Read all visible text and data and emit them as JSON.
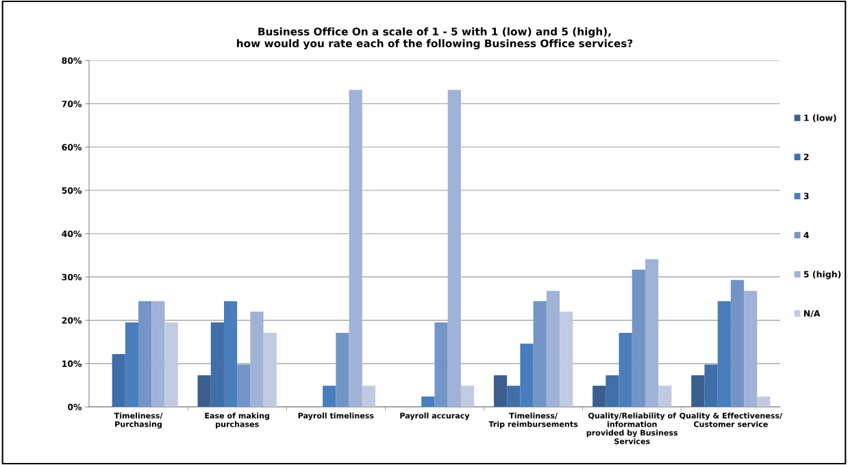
{
  "chart_data": {
    "type": "bar",
    "title": "Business Office On a scale of 1 - 5 with 1 (low) and 5 (high),\nhow would you rate each of the following Business Office services?",
    "categories": [
      "Timeliness/\nPurchasing",
      "Ease of making\npurchases",
      "Payroll timeliness",
      "Payroll accuracy",
      "Timeliness/\nTrip reimbursements",
      "Quality/Reliability of\ninformation\nprovided by Business\nServices",
      "Quality & Effectiveness/\nCustomer service"
    ],
    "series": [
      {
        "name": "1 (low)",
        "color": "#3b5e8e",
        "values": [
          0,
          7.3,
          0,
          0,
          7.3,
          4.9,
          7.3
        ]
      },
      {
        "name": "2",
        "color": "#3f6ea8",
        "values": [
          12.2,
          19.5,
          0,
          0,
          4.9,
          7.3,
          9.8
        ]
      },
      {
        "name": "3",
        "color": "#4a7dbb",
        "values": [
          19.5,
          24.4,
          4.9,
          2.4,
          14.6,
          17.1,
          24.4
        ]
      },
      {
        "name": "4",
        "color": "#7394c6",
        "values": [
          24.4,
          9.8,
          17.1,
          19.5,
          24.4,
          31.7,
          29.3
        ]
      },
      {
        "name": "5 (high)",
        "color": "#a0b3d6",
        "values": [
          24.4,
          22.0,
          73.2,
          73.2,
          26.8,
          34.1,
          26.8
        ]
      },
      {
        "name": "N/A",
        "color": "#c0cbe2",
        "values": [
          19.5,
          17.1,
          4.9,
          4.9,
          22.0,
          4.9,
          2.4
        ]
      }
    ],
    "ylim": [
      0,
      80
    ],
    "yticks": [
      {
        "value": 0,
        "label": "0%"
      },
      {
        "value": 10,
        "label": "10%"
      },
      {
        "value": 20,
        "label": "20%"
      },
      {
        "value": 30,
        "label": "30%"
      },
      {
        "value": 40,
        "label": "40%"
      },
      {
        "value": 50,
        "label": "50%"
      },
      {
        "value": 60,
        "label": "60%"
      },
      {
        "value": 70,
        "label": "70%"
      },
      {
        "value": 80,
        "label": "80%"
      }
    ],
    "grid": "y",
    "legend": "right"
  }
}
